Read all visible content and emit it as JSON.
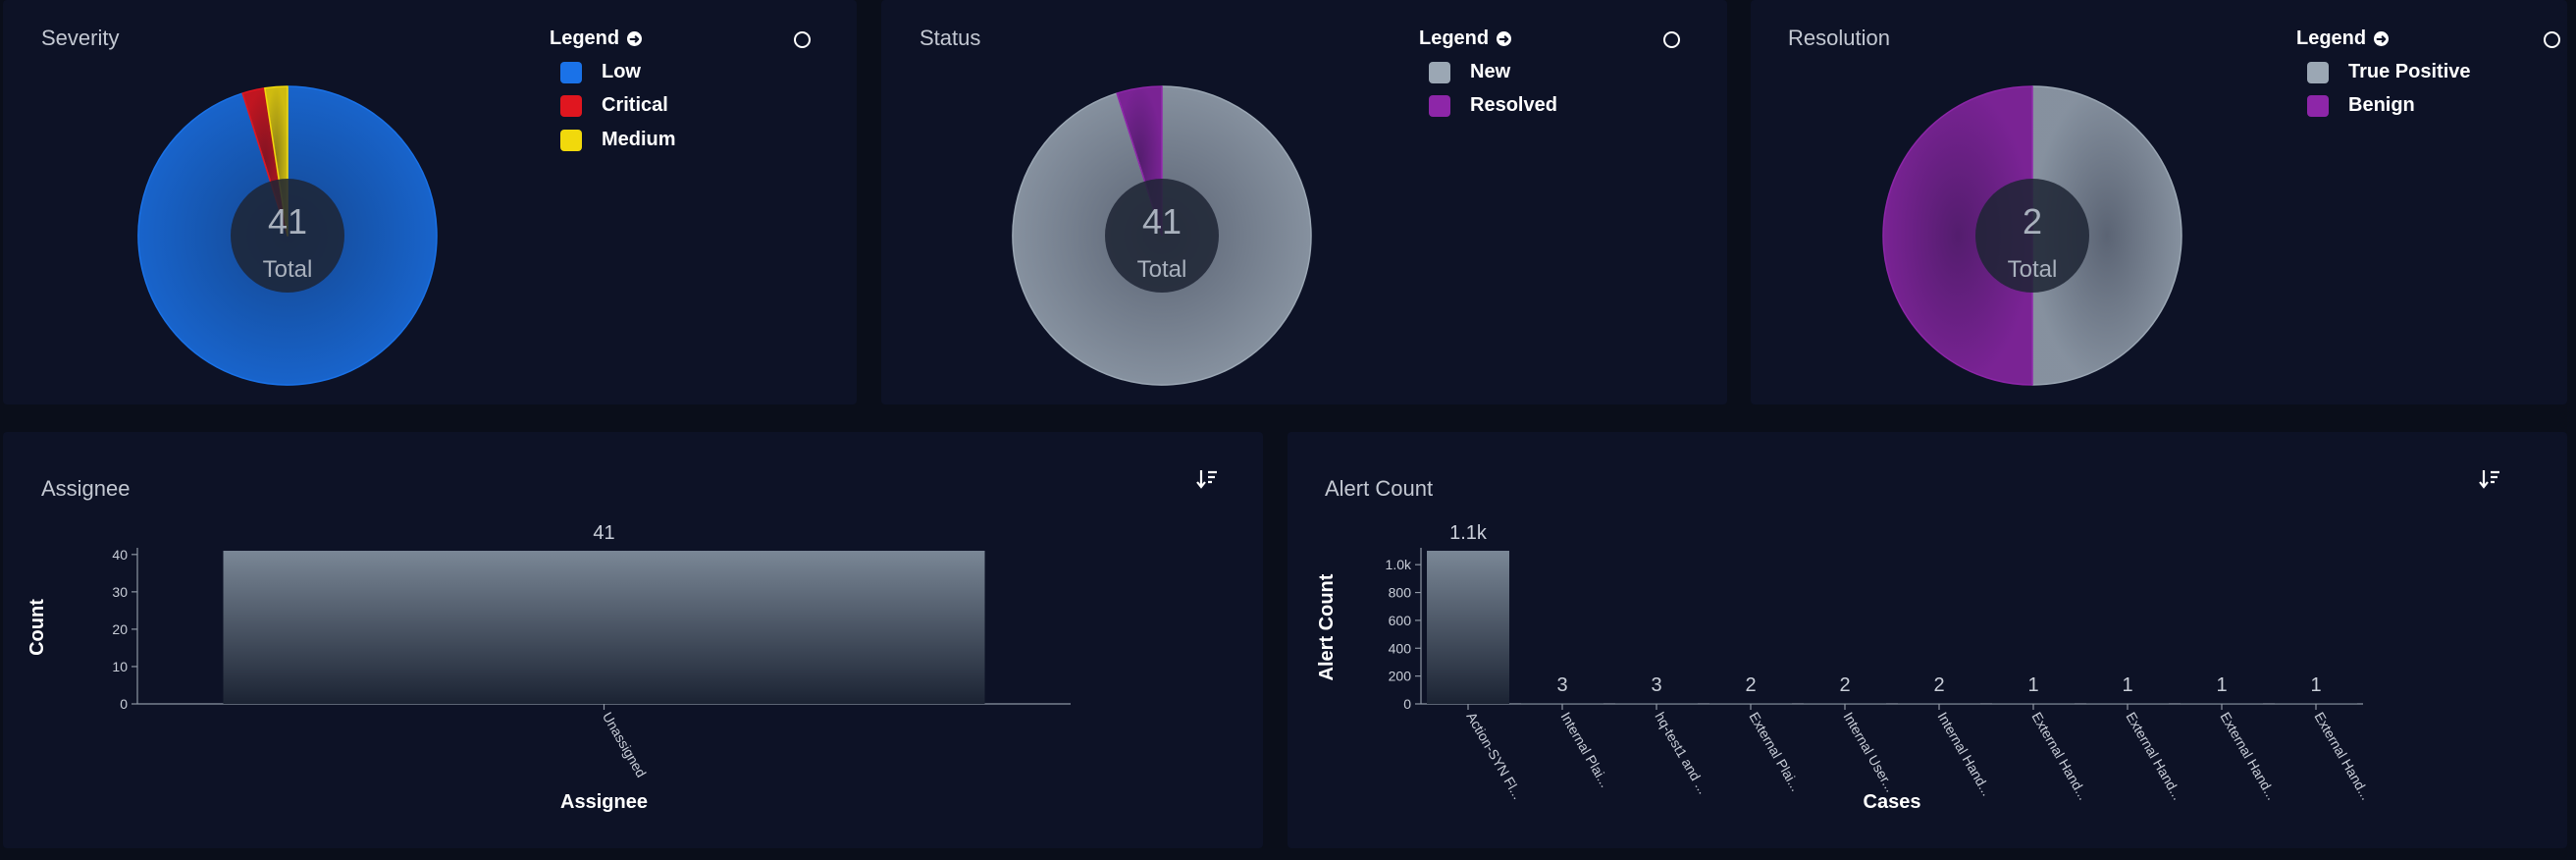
{
  "colors": {
    "low": "#1a72e8",
    "critical": "#e0161f",
    "medium": "#f1d90c",
    "new": "#9ba7b4",
    "resolved": "#8d26a8",
    "true_positive": "#9ba7b4",
    "benign": "#8d26a8"
  },
  "legend_title": "Legend",
  "pies": {
    "severity": {
      "title": "Severity",
      "total": "41",
      "total_label": "Total",
      "legend": [
        {
          "label": "Low",
          "color_key": "low"
        },
        {
          "label": "Critical",
          "color_key": "critical"
        },
        {
          "label": "Medium",
          "color_key": "medium"
        }
      ]
    },
    "status": {
      "title": "Status",
      "total": "41",
      "total_label": "Total",
      "legend": [
        {
          "label": "New",
          "color_key": "new"
        },
        {
          "label": "Resolved",
          "color_key": "resolved"
        }
      ]
    },
    "resolution": {
      "title": "Resolution",
      "total": "2",
      "total_label": "Total",
      "legend": [
        {
          "label": "True Positive",
          "color_key": "true_positive"
        },
        {
          "label": "Benign",
          "color_key": "benign"
        }
      ]
    }
  },
  "bars": {
    "assignee": {
      "title": "Assignee",
      "xlabel": "Assignee",
      "ylabel": "Count"
    },
    "alert_count": {
      "title": "Alert Count",
      "xlabel": "Cases",
      "ylabel": "Alert Count"
    }
  },
  "chart_data": [
    {
      "type": "pie",
      "title": "Severity",
      "categories": [
        "Low",
        "Critical",
        "Medium"
      ],
      "values": [
        39,
        1,
        1
      ],
      "colors": [
        "#1a72e8",
        "#e0161f",
        "#f1d90c"
      ],
      "legend": "top-right"
    },
    {
      "type": "pie",
      "title": "Status",
      "categories": [
        "New",
        "Resolved"
      ],
      "values": [
        39,
        2
      ],
      "colors": [
        "#9ba7b4",
        "#8d26a8"
      ],
      "legend": "top-right"
    },
    {
      "type": "pie",
      "title": "Resolution",
      "categories": [
        "True Positive",
        "Benign"
      ],
      "values": [
        1,
        1
      ],
      "colors": [
        "#9ba7b4",
        "#8d26a8"
      ],
      "legend": "top-right"
    },
    {
      "type": "bar",
      "title": "Assignee",
      "categories": [
        "Unassigned"
      ],
      "values": [
        41
      ],
      "value_labels": [
        "41"
      ],
      "xlabel": "Assignee",
      "ylabel": "Count",
      "ylim": [
        0,
        41
      ],
      "yticks": [
        0,
        10,
        20,
        30,
        40
      ]
    },
    {
      "type": "bar",
      "title": "Alert Count",
      "categories": [
        "Action-SYN Fl...",
        "Internal Plai...",
        "hq-test1 and ...",
        "External Plai...",
        "Internal User...",
        "Internal Hand...",
        "External Hand...",
        "External Hand...",
        "External Hand...",
        "External Hand..."
      ],
      "values": [
        1100,
        3,
        3,
        2,
        2,
        2,
        1,
        1,
        1,
        1
      ],
      "value_labels": [
        "1.1k",
        "3",
        "3",
        "2",
        "2",
        "2",
        "1",
        "1",
        "1",
        "1"
      ],
      "xlabel": "Cases",
      "ylabel": "Alert Count",
      "ylim": [
        0,
        1100
      ],
      "yticks": [
        0,
        200,
        400,
        600,
        800,
        1000
      ],
      "ytick_labels": [
        "0",
        "200",
        "400",
        "600",
        "800",
        "1.0k"
      ]
    }
  ]
}
